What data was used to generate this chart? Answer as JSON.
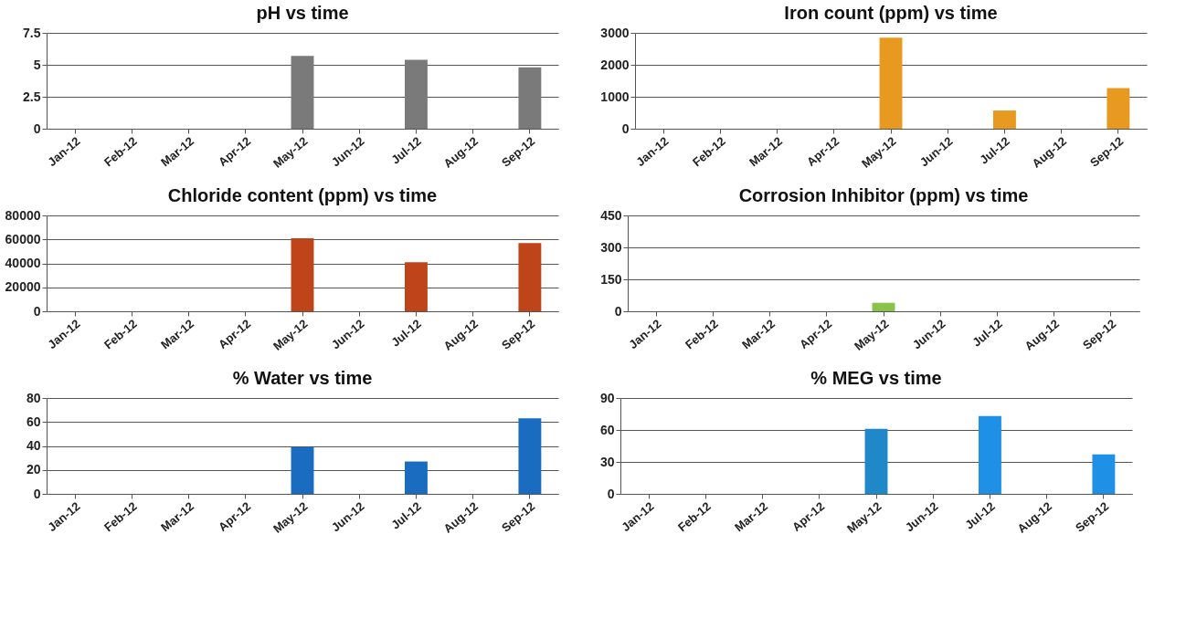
{
  "chart_data": [
    {
      "type": "bar",
      "title": "pH vs time",
      "categories": [
        "Jan-12",
        "Feb-12",
        "Mar-12",
        "Apr-12",
        "May-12",
        "Jun-12",
        "Jul-12",
        "Aug-12",
        "Sep-12"
      ],
      "values": [
        null,
        null,
        null,
        null,
        5.7,
        null,
        5.4,
        null,
        4.8
      ],
      "color": "#7a7a7a",
      "ylim": [
        0,
        7.5
      ],
      "yticks": [
        0,
        2.5,
        5,
        7.5
      ],
      "grid": "y"
    },
    {
      "type": "bar",
      "title": "Iron count (ppm) vs time",
      "categories": [
        "Jan-12",
        "Feb-12",
        "Mar-12",
        "Apr-12",
        "May-12",
        "Jun-12",
        "Jul-12",
        "Aug-12",
        "Sep-12"
      ],
      "values": [
        null,
        null,
        null,
        null,
        2850,
        null,
        570,
        null,
        1270
      ],
      "color": "#e89a20",
      "ylim": [
        0,
        3000
      ],
      "yticks": [
        0,
        1000,
        2000,
        3000
      ],
      "grid": "y"
    },
    {
      "type": "bar",
      "title": "Chloride content (ppm) vs time",
      "categories": [
        "Jan-12",
        "Feb-12",
        "Mar-12",
        "Apr-12",
        "May-12",
        "Jun-12",
        "Jul-12",
        "Aug-12",
        "Sep-12"
      ],
      "values": [
        null,
        null,
        null,
        null,
        61000,
        null,
        41000,
        null,
        57000
      ],
      "color": "#c0441a",
      "ylim": [
        0,
        80000
      ],
      "yticks": [
        0,
        20000,
        40000,
        60000,
        80000
      ],
      "grid": "y"
    },
    {
      "type": "bar",
      "title": "Corrosion Inhibitor (ppm) vs time",
      "categories": [
        "Jan-12",
        "Feb-12",
        "Mar-12",
        "Apr-12",
        "May-12",
        "Jun-12",
        "Jul-12",
        "Aug-12",
        "Sep-12"
      ],
      "values": [
        null,
        null,
        null,
        null,
        40,
        null,
        null,
        null,
        null
      ],
      "color": "#8bc34a",
      "ylim": [
        0,
        450
      ],
      "yticks": [
        0,
        150,
        300,
        450
      ],
      "grid": "y"
    },
    {
      "type": "bar",
      "title": "% Water vs time",
      "categories": [
        "Jan-12",
        "Feb-12",
        "Mar-12",
        "Apr-12",
        "May-12",
        "Jun-12",
        "Jul-12",
        "Aug-12",
        "Sep-12"
      ],
      "values": [
        null,
        null,
        null,
        null,
        39,
        null,
        27,
        null,
        63
      ],
      "color": "#1a6cc0",
      "ylim": [
        0,
        80
      ],
      "yticks": [
        0,
        20,
        40,
        60,
        80
      ],
      "grid": "y"
    },
    {
      "type": "bar",
      "title": "% MEG vs time",
      "categories": [
        "Jan-12",
        "Feb-12",
        "Mar-12",
        "Apr-12",
        "May-12",
        "Jun-12",
        "Jul-12",
        "Aug-12",
        "Sep-12"
      ],
      "values": [
        null,
        null,
        null,
        null,
        61,
        null,
        73,
        null,
        37
      ],
      "colors": [
        "#1e90e6",
        "#1e90e6",
        "#1e90e6",
        "#1e90e6",
        "#1e88c8",
        "#1e90e6",
        "#1e90e6",
        "#1e90e6",
        "#1e90e6"
      ],
      "ylim": [
        0,
        90
      ],
      "yticks": [
        0,
        30,
        60,
        90
      ],
      "grid": "y"
    }
  ]
}
